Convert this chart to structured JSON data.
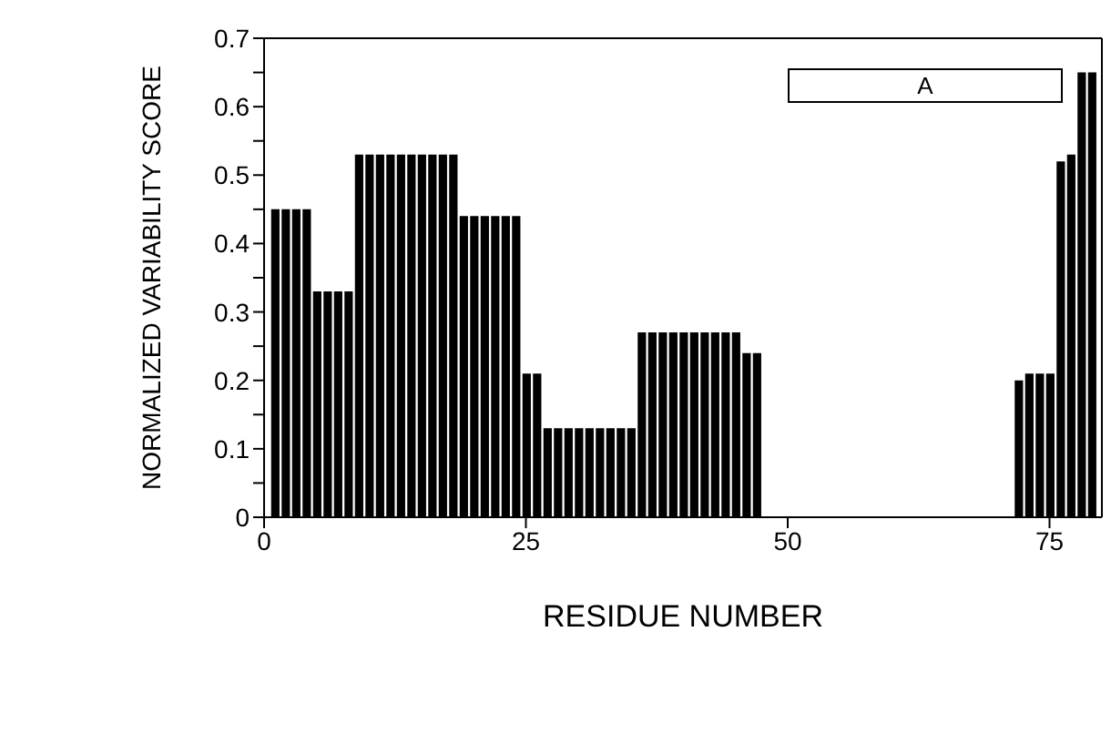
{
  "chart_data": {
    "type": "bar",
    "xlabel": "RESIDUE NUMBER",
    "ylabel": "NORMALIZED VARIABILITY SCORE",
    "x": [
      1,
      2,
      3,
      4,
      5,
      6,
      7,
      8,
      9,
      10,
      11,
      12,
      13,
      14,
      15,
      16,
      17,
      18,
      19,
      20,
      21,
      22,
      23,
      24,
      25,
      26,
      27,
      28,
      29,
      30,
      31,
      32,
      33,
      34,
      35,
      36,
      37,
      38,
      39,
      40,
      41,
      42,
      43,
      44,
      45,
      46,
      47,
      72,
      73,
      74,
      75,
      76,
      77,
      78,
      79
    ],
    "values": [
      0.45,
      0.45,
      0.45,
      0.45,
      0.33,
      0.33,
      0.33,
      0.33,
      0.53,
      0.53,
      0.53,
      0.53,
      0.53,
      0.53,
      0.53,
      0.53,
      0.53,
      0.53,
      0.44,
      0.44,
      0.44,
      0.44,
      0.44,
      0.44,
      0.21,
      0.21,
      0.13,
      0.13,
      0.13,
      0.13,
      0.13,
      0.13,
      0.13,
      0.13,
      0.13,
      0.27,
      0.27,
      0.27,
      0.27,
      0.27,
      0.27,
      0.27,
      0.27,
      0.27,
      0.27,
      0.24,
      0.24,
      0.2,
      0.21,
      0.21,
      0.21,
      0.52,
      0.53,
      0.65,
      0.65
    ],
    "color": "#000000",
    "xlim": [
      0,
      80
    ],
    "xticks": [
      0,
      25,
      50,
      75
    ],
    "ylim": [
      0,
      0.7
    ],
    "yticks": [
      0,
      {
        "value": 0.05,
        "label": null
      },
      0.1,
      {
        "value": 0.15,
        "label": null
      },
      0.2,
      {
        "value": 0.25,
        "label": null
      },
      0.3,
      {
        "value": 0.35,
        "label": null
      },
      0.4,
      {
        "value": 0.45,
        "label": null
      },
      0.5,
      {
        "value": 0.55,
        "label": null
      },
      0.6,
      {
        "value": 0.65,
        "label": null
      },
      0.7
    ],
    "annotations": [
      "A"
    ],
    "grid": false,
    "legend": false
  }
}
